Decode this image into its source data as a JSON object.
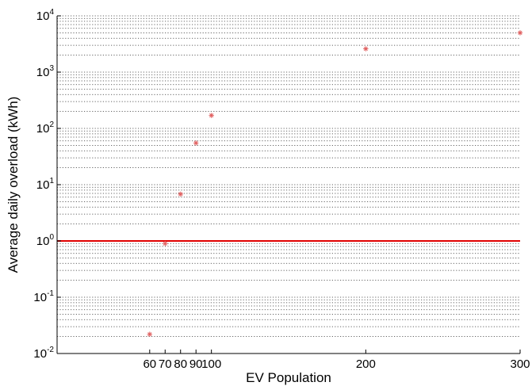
{
  "chart_data": {
    "type": "scatter",
    "title": "",
    "xlabel": "EV Population",
    "ylabel": "Average daily overload (kWh)",
    "xlim": [
      0,
      300
    ],
    "ylim": [
      0.01,
      10000
    ],
    "yscale": "log",
    "grid": "y-major-and-minor-dotted",
    "xticks": [
      60,
      70,
      80,
      90,
      100,
      200,
      300
    ],
    "xtick_labels": [
      "60",
      "70",
      "80",
      "90",
      "100",
      "200",
      "300"
    ],
    "yticks": [
      {
        "base": "10",
        "exp": "-2",
        "value": 0.01
      },
      {
        "base": "10",
        "exp": "-1",
        "value": 0.1
      },
      {
        "base": "10",
        "exp": "0",
        "value": 1
      },
      {
        "base": "10",
        "exp": "1",
        "value": 10
      },
      {
        "base": "10",
        "exp": "2",
        "value": 100
      },
      {
        "base": "10",
        "exp": "3",
        "value": 1000
      },
      {
        "base": "10",
        "exp": "4",
        "value": 10000
      }
    ],
    "series": [
      {
        "marker": "asterisk",
        "color": "#e06060",
        "points": [
          {
            "x": 60,
            "y": 0.022
          },
          {
            "x": 70,
            "y": 0.9
          },
          {
            "x": 80,
            "y": 6.8
          },
          {
            "x": 90,
            "y": 55
          },
          {
            "x": 100,
            "y": 170
          },
          {
            "x": 200,
            "y": 2600
          },
          {
            "x": 300,
            "y": 5000
          }
        ]
      }
    ],
    "reference_lines": [
      {
        "orientation": "horizontal",
        "y": 1,
        "color": "#e00000"
      }
    ]
  }
}
